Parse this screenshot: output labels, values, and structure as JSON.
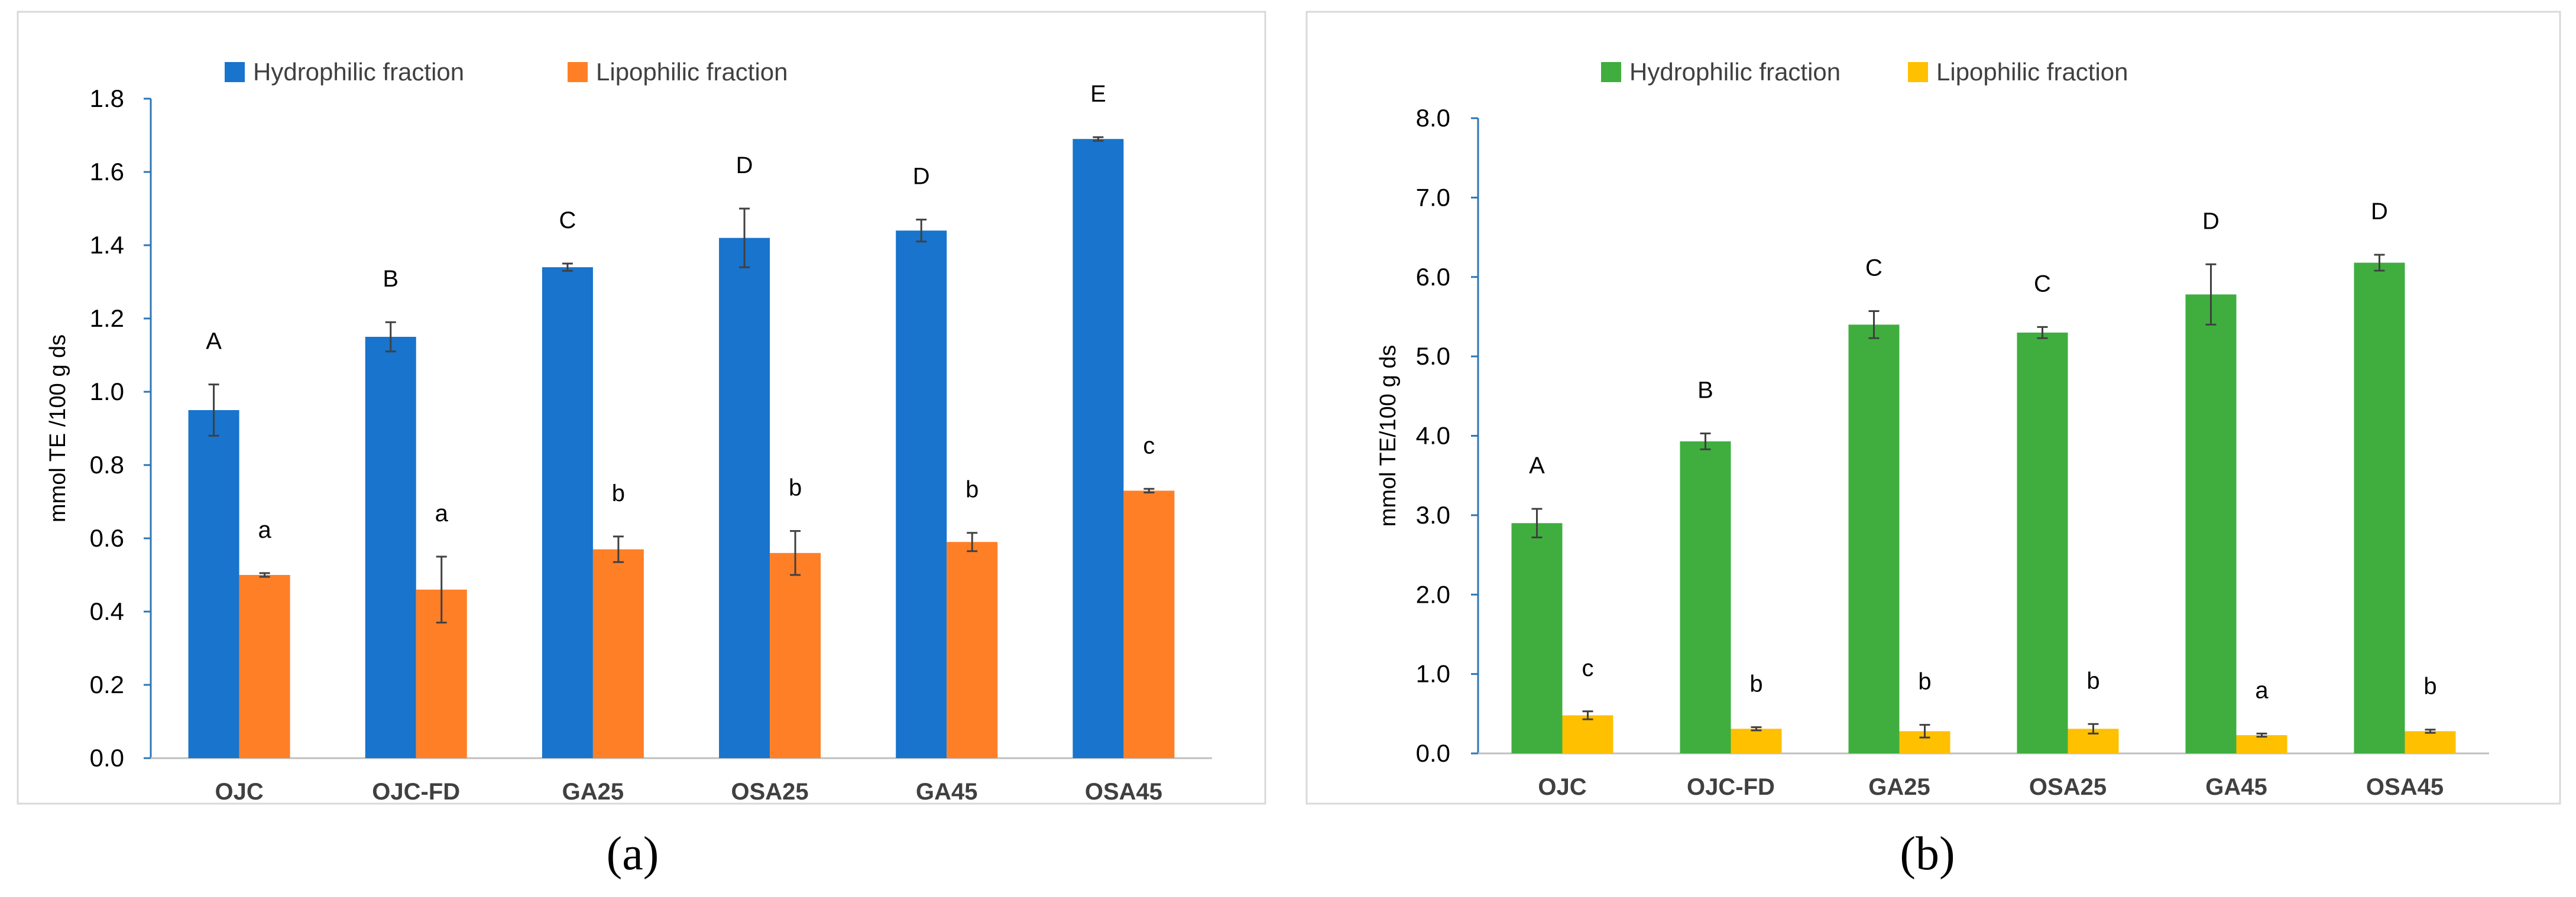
{
  "chart_data": [
    {
      "type": "bar",
      "panel": "a",
      "ylabel": "mmol TE /100 g ds",
      "ylim": [
        0,
        1.8
      ],
      "yticks": [
        "0.0",
        "0.2",
        "0.4",
        "0.6",
        "0.8",
        "1.0",
        "1.2",
        "1.4",
        "1.6",
        "1.8"
      ],
      "categories": [
        "OJC",
        "OJC-FD",
        "GA25",
        "OSA25",
        "GA45",
        "OSA45"
      ],
      "legend_position": "top",
      "series": [
        {
          "name": "Hydrophilic fraction",
          "color": "#1874cd",
          "values": [
            0.95,
            1.15,
            1.34,
            1.42,
            1.44,
            1.69
          ],
          "errors": [
            0.07,
            0.04,
            0.01,
            0.08,
            0.03,
            0.005
          ],
          "letters": [
            "A",
            "B",
            "C",
            "D",
            "D",
            "E"
          ]
        },
        {
          "name": "Lipophilic fraction",
          "color": "#ff7f27",
          "values": [
            0.5,
            0.46,
            0.57,
            0.56,
            0.59,
            0.73
          ],
          "errors": [
            0.005,
            0.09,
            0.035,
            0.06,
            0.025,
            0.005
          ],
          "letters": [
            "a",
            "a",
            "b",
            "b",
            "b",
            "c"
          ]
        }
      ]
    },
    {
      "type": "bar",
      "panel": "b",
      "ylabel": "mmol TE/100 g ds",
      "ylim": [
        0,
        8.0
      ],
      "yticks": [
        "0.0",
        "1.0",
        "2.0",
        "3.0",
        "4.0",
        "5.0",
        "6.0",
        "7.0",
        "8.0"
      ],
      "categories": [
        "OJC",
        "OJC-FD",
        "GA25",
        "OSA25",
        "GA45",
        "OSA45"
      ],
      "legend_position": "top",
      "series": [
        {
          "name": "Hydrophilic fraction",
          "color": "#3fae3f",
          "values": [
            2.9,
            3.93,
            5.4,
            5.3,
            5.78,
            6.18
          ],
          "errors": [
            0.18,
            0.1,
            0.17,
            0.07,
            0.38,
            0.1
          ],
          "letters": [
            "A",
            "B",
            "C",
            "C",
            "D",
            "D"
          ]
        },
        {
          "name": "Lipophilic fraction",
          "color": "#ffc000",
          "values": [
            0.48,
            0.31,
            0.28,
            0.31,
            0.23,
            0.28
          ],
          "errors": [
            0.05,
            0.02,
            0.08,
            0.06,
            0.02,
            0.02
          ],
          "letters": [
            "c",
            "b",
            "b",
            "b",
            "a",
            "b"
          ]
        }
      ]
    }
  ],
  "captions": [
    "(a)",
    "(b)"
  ]
}
